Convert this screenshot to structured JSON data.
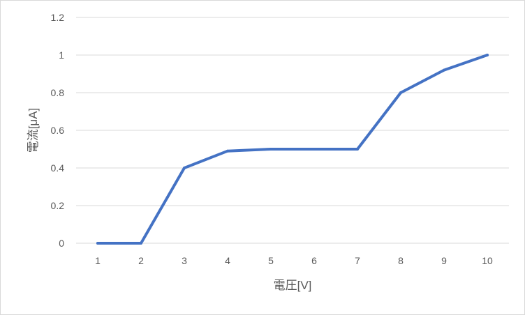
{
  "chart_data": {
    "type": "line",
    "title": "",
    "xlabel": "電圧[V]",
    "ylabel": "電流[μA]",
    "categories": [
      "1",
      "2",
      "3",
      "4",
      "5",
      "6",
      "7",
      "8",
      "9",
      "10"
    ],
    "y_ticks": [
      "0",
      "0.2",
      "0.4",
      "0.6",
      "0.8",
      "1",
      "1.2"
    ],
    "ylim": [
      0,
      1.2
    ],
    "grid": true,
    "legend": "none",
    "series": [
      {
        "color": "#4472c4",
        "values": [
          0,
          0,
          0.4,
          0.49,
          0.5,
          0.5,
          0.5,
          0.8,
          0.92,
          1.0
        ]
      }
    ]
  }
}
